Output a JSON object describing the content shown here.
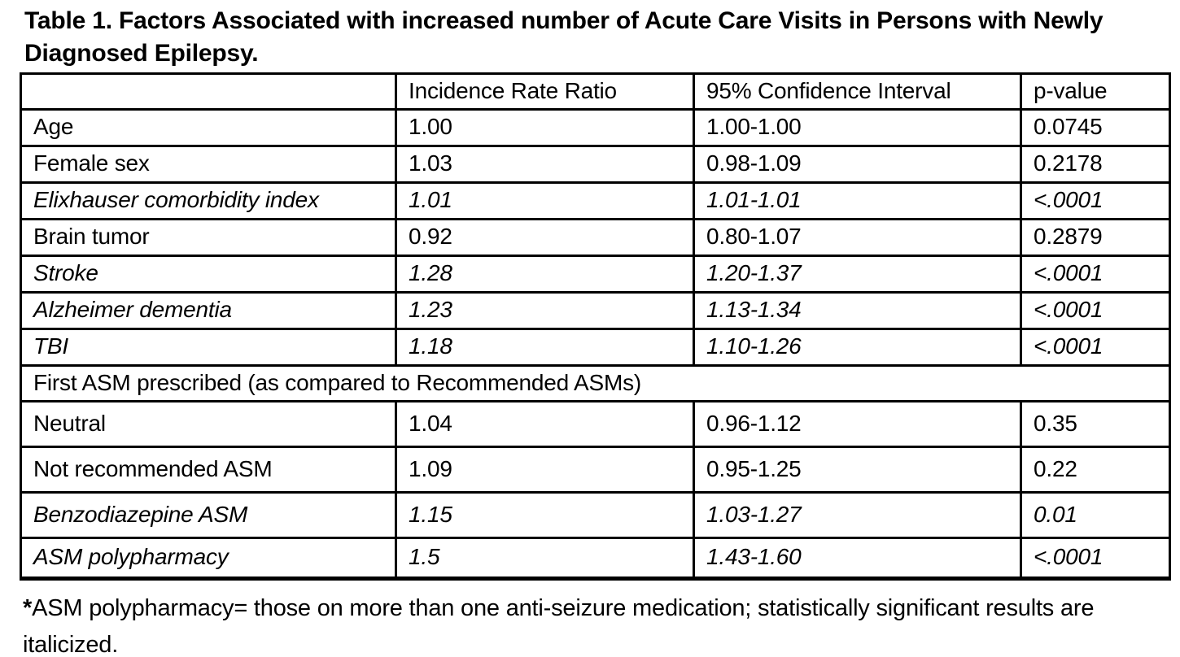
{
  "title": "Table 1. Factors Associated with increased number of Acute Care Visits in Persons with Newly Diagnosed Epilepsy.",
  "table": {
    "columns": [
      "",
      "Incidence Rate Ratio",
      "95% Confidence Interval",
      "p-value"
    ],
    "rows": [
      {
        "label": "Age",
        "irr": "1.00",
        "ci": "1.00-1.00",
        "p": "0.0745",
        "italic": false,
        "indent": false
      },
      {
        "label": "Female sex",
        "irr": "1.03",
        "ci": "0.98-1.09",
        "p": "0.2178",
        "italic": false,
        "indent": false
      },
      {
        "label": "Elixhauser comorbidity index",
        "irr": "1.01",
        "ci": "1.01-1.01",
        "p": "<.0001",
        "italic": true,
        "indent": false
      },
      {
        "label": "Brain tumor",
        "irr": "0.92",
        "ci": "0.80-1.07",
        "p": "0.2879",
        "italic": false,
        "indent": false
      },
      {
        "label": "Stroke",
        "irr": "1.28",
        "ci": "1.20-1.37",
        "p": "<.0001",
        "italic": true,
        "indent": false
      },
      {
        "label": "Alzheimer dementia",
        "irr": "1.23",
        "ci": "1.13-1.34",
        "p": "<.0001",
        "italic": true,
        "indent": false
      },
      {
        "label": "TBI",
        "irr": "1.18",
        "ci": "1.10-1.26",
        "p": "<.0001",
        "italic": true,
        "indent": false
      }
    ],
    "section_row": {
      "label": "First ASM prescribed (as compared to Recommended ASMs)"
    },
    "sub_rows": [
      {
        "label": "Neutral",
        "irr": "1.04",
        "ci": "0.96-1.12",
        "p": "0.35",
        "italic": false,
        "indent": true
      },
      {
        "label": "Not recommended ASM",
        "irr": "1.09",
        "ci": "0.95-1.25",
        "p": "0.22",
        "italic": false,
        "indent": true
      },
      {
        "label": "Benzodiazepine ASM",
        "irr": "1.15",
        "ci": "1.03-1.27",
        "p": "0.01",
        "italic": true,
        "indent": true
      }
    ],
    "last_row": {
      "label": "ASM polypharmacy",
      "irr": "1.5",
      "ci": "1.43-1.60",
      "p": "<.0001",
      "italic": true,
      "indent": false
    }
  },
  "footnote": {
    "marker": "*",
    "text": "ASM polypharmacy= those on more than one anti-seizure medication; statistically significant results are italicized."
  }
}
